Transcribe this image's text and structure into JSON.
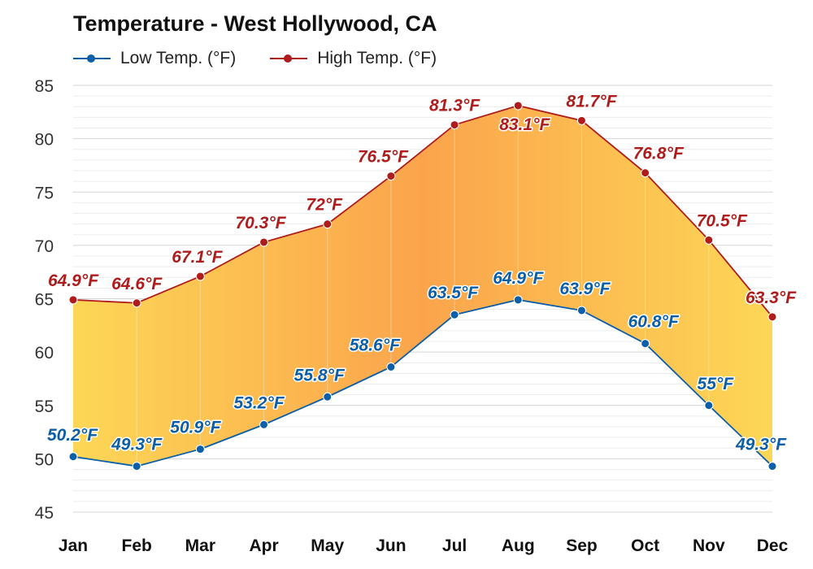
{
  "chart_data": {
    "type": "area",
    "title": "Temperature - West Hollywood, CA",
    "xlabel": "",
    "ylabel": "",
    "categories": [
      "Jan",
      "Feb",
      "Mar",
      "Apr",
      "May",
      "Jun",
      "Jul",
      "Aug",
      "Sep",
      "Oct",
      "Nov",
      "Dec"
    ],
    "y_ticks": [
      45,
      50,
      55,
      60,
      65,
      70,
      75,
      80,
      85
    ],
    "ylim": [
      45,
      85
    ],
    "grid": true,
    "legend_position": "top-left",
    "series": [
      {
        "name": "Low Temp. (°F)",
        "color": "#0b5ea8",
        "values": [
          50.2,
          49.3,
          50.9,
          53.2,
          55.8,
          58.6,
          63.5,
          64.9,
          63.9,
          60.8,
          55,
          49.3
        ],
        "labels": [
          "50.2°F",
          "49.3°F",
          "50.9°F",
          "53.2°F",
          "55.8°F",
          "58.6°F",
          "63.5°F",
          "64.9°F",
          "63.9°F",
          "60.8°F",
          "55°F",
          "49.3°F"
        ]
      },
      {
        "name": "High Temp. (°F)",
        "color": "#b01c1c",
        "values": [
          64.9,
          64.6,
          67.1,
          70.3,
          72,
          76.5,
          81.3,
          83.1,
          81.7,
          76.8,
          70.5,
          63.3
        ],
        "labels": [
          "64.9°F",
          "64.6°F",
          "67.1°F",
          "70.3°F",
          "72°F",
          "76.5°F",
          "81.3°F",
          "83.1°F",
          "81.7°F",
          "76.8°F",
          "70.5°F",
          "63.3°F"
        ]
      }
    ]
  }
}
